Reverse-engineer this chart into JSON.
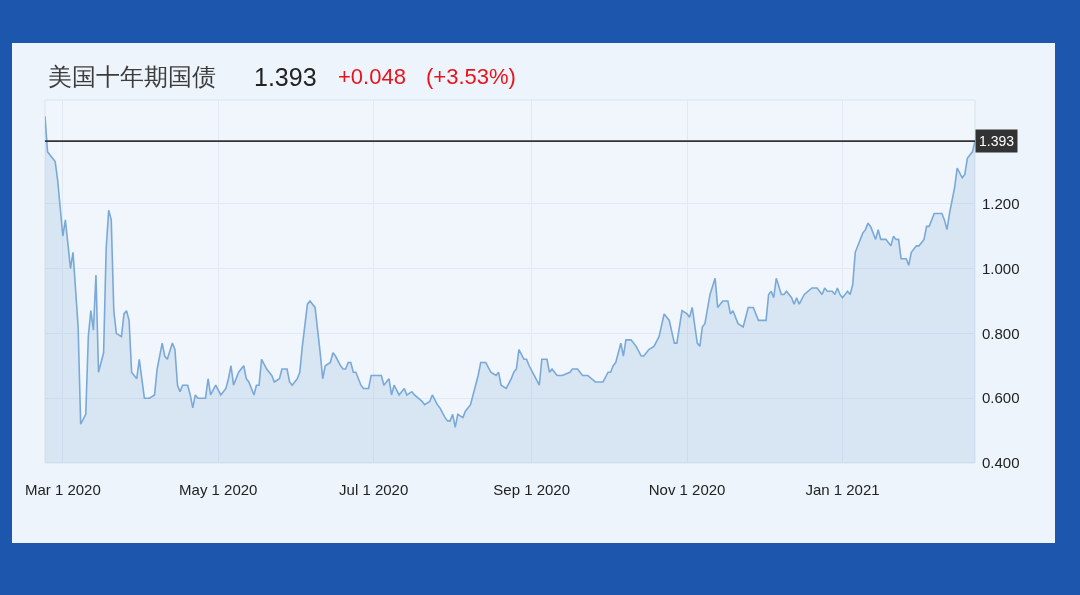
{
  "chart_data": {
    "type": "area",
    "title": "美国十年期国债",
    "subtitle": "1.393",
    "annotations": [
      "+0.048",
      "(+3.53%)"
    ],
    "x": [
      "2020-02-23",
      "2020-02-24",
      "2020-02-27",
      "2020-02-28",
      "2020-03-01",
      "2020-03-02",
      "2020-03-04",
      "2020-03-05",
      "2020-03-07",
      "2020-03-08",
      "2020-03-10",
      "2020-03-11",
      "2020-03-12",
      "2020-03-13",
      "2020-03-14",
      "2020-03-15",
      "2020-03-17",
      "2020-03-18",
      "2020-03-19",
      "2020-03-20",
      "2020-03-21",
      "2020-03-22",
      "2020-03-24",
      "2020-03-25",
      "2020-03-26",
      "2020-03-27",
      "2020-03-28",
      "2020-03-30",
      "2020-03-31",
      "2020-04-02",
      "2020-04-03",
      "2020-04-04",
      "2020-04-06",
      "2020-04-07",
      "2020-04-09",
      "2020-04-10",
      "2020-04-11",
      "2020-04-13",
      "2020-04-14",
      "2020-04-15",
      "2020-04-16",
      "2020-04-17",
      "2020-04-19",
      "2020-04-20",
      "2020-04-21",
      "2020-04-22",
      "2020-04-23",
      "2020-04-26",
      "2020-04-27",
      "2020-04-28",
      "2020-04-30",
      "2020-05-02",
      "2020-05-04",
      "2020-05-05",
      "2020-05-06",
      "2020-05-07",
      "2020-05-09",
      "2020-05-11",
      "2020-05-12",
      "2020-05-13",
      "2020-05-15",
      "2020-05-16",
      "2020-05-17",
      "2020-05-18",
      "2020-05-20",
      "2020-05-21",
      "2020-05-22",
      "2020-05-23",
      "2020-05-25",
      "2020-05-26",
      "2020-05-28",
      "2020-05-29",
      "2020-05-30",
      "2020-06-01",
      "2020-06-02",
      "2020-06-03",
      "2020-06-05",
      "2020-06-06",
      "2020-06-08",
      "2020-06-09",
      "2020-06-10",
      "2020-06-11",
      "2020-06-12",
      "2020-06-14",
      "2020-06-15",
      "2020-06-16",
      "2020-06-18",
      "2020-06-19",
      "2020-06-20",
      "2020-06-21",
      "2020-06-22",
      "2020-06-23",
      "2020-06-24",
      "2020-06-26",
      "2020-06-27",
      "2020-06-29",
      "2020-06-30",
      "2020-07-02",
      "2020-07-04",
      "2020-07-05",
      "2020-07-07",
      "2020-07-08",
      "2020-07-09",
      "2020-07-11",
      "2020-07-13",
      "2020-07-14",
      "2020-07-16",
      "2020-07-17",
      "2020-07-20",
      "2020-07-21",
      "2020-07-23",
      "2020-07-24",
      "2020-07-26",
      "2020-07-27",
      "2020-07-29",
      "2020-07-30",
      "2020-07-31",
      "2020-08-01",
      "2020-08-02",
      "2020-08-03",
      "2020-08-05",
      "2020-08-06",
      "2020-08-07",
      "2020-08-08",
      "2020-08-10",
      "2020-08-11",
      "2020-08-12",
      "2020-08-13",
      "2020-08-14",
      "2020-08-16",
      "2020-08-18",
      "2020-08-19",
      "2020-08-20",
      "2020-08-22",
      "2020-08-24",
      "2020-08-25",
      "2020-08-26",
      "2020-08-27",
      "2020-08-29",
      "2020-08-30",
      "2020-08-31",
      "2020-09-02",
      "2020-09-04",
      "2020-09-05",
      "2020-09-07",
      "2020-09-08",
      "2020-09-09",
      "2020-09-11",
      "2020-09-13",
      "2020-09-16",
      "2020-09-17",
      "2020-09-18",
      "2020-09-19",
      "2020-09-21",
      "2020-09-23",
      "2020-09-26",
      "2020-09-27",
      "2020-09-29",
      "2020-10-01",
      "2020-10-02",
      "2020-10-03",
      "2020-10-04",
      "2020-10-06",
      "2020-10-07",
      "2020-10-08",
      "2020-10-10",
      "2020-10-12",
      "2020-10-14",
      "2020-10-15",
      "2020-10-17",
      "2020-10-19",
      "2020-10-21",
      "2020-10-23",
      "2020-10-25",
      "2020-10-27",
      "2020-10-28",
      "2020-10-30",
      "2020-11-01",
      "2020-11-02",
      "2020-11-03",
      "2020-11-05",
      "2020-11-06",
      "2020-11-07",
      "2020-11-08",
      "2020-11-10",
      "2020-11-12",
      "2020-11-13",
      "2020-11-15",
      "2020-11-17",
      "2020-11-18",
      "2020-11-19",
      "2020-11-21",
      "2020-11-23",
      "2020-11-25",
      "2020-11-27",
      "2020-11-29",
      "2020-12-02",
      "2020-12-03",
      "2020-12-04",
      "2020-12-05",
      "2020-12-06",
      "2020-12-08",
      "2020-12-09",
      "2020-12-10",
      "2020-12-12",
      "2020-12-13",
      "2020-12-14",
      "2020-12-15",
      "2020-12-17",
      "2020-12-20",
      "2020-12-22",
      "2020-12-24",
      "2020-12-25",
      "2020-12-26",
      "2020-12-28",
      "2020-12-29",
      "2020-12-30",
      "2020-12-31",
      "2021-01-01",
      "2021-01-03",
      "2021-01-04",
      "2021-01-05",
      "2021-01-06",
      "2021-01-09",
      "2021-01-10",
      "2021-01-11",
      "2021-01-12",
      "2021-01-14",
      "2021-01-15",
      "2021-01-16",
      "2021-01-17",
      "2021-01-18",
      "2021-01-20",
      "2021-01-21",
      "2021-01-22",
      "2021-01-23",
      "2021-01-24",
      "2021-01-26",
      "2021-01-27",
      "2021-01-28",
      "2021-01-30",
      "2021-01-31",
      "2021-02-02",
      "2021-02-03",
      "2021-02-04",
      "2021-02-06",
      "2021-02-07",
      "2021-02-09",
      "2021-02-10",
      "2021-02-11",
      "2021-02-12",
      "2021-02-14",
      "2021-02-15",
      "2021-02-17",
      "2021-02-18",
      "2021-02-19",
      "2021-02-21",
      "2021-02-22"
    ],
    "series": [
      {
        "color": "#7aa9d8",
        "values": [
          1.47,
          1.36,
          1.33,
          1.27,
          1.1,
          1.15,
          1.0,
          1.05,
          0.82,
          0.52,
          0.55,
          0.79,
          0.87,
          0.81,
          0.98,
          0.68,
          0.74,
          1.06,
          1.18,
          1.15,
          0.87,
          0.8,
          0.79,
          0.86,
          0.87,
          0.84,
          0.68,
          0.66,
          0.72,
          0.6,
          0.6,
          0.6,
          0.61,
          0.69,
          0.77,
          0.73,
          0.72,
          0.77,
          0.75,
          0.64,
          0.62,
          0.64,
          0.64,
          0.61,
          0.57,
          0.61,
          0.6,
          0.6,
          0.66,
          0.61,
          0.64,
          0.61,
          0.63,
          0.66,
          0.7,
          0.64,
          0.68,
          0.7,
          0.66,
          0.65,
          0.61,
          0.64,
          0.64,
          0.72,
          0.69,
          0.68,
          0.67,
          0.65,
          0.66,
          0.69,
          0.69,
          0.65,
          0.64,
          0.66,
          0.68,
          0.76,
          0.89,
          0.9,
          0.88,
          0.81,
          0.74,
          0.66,
          0.7,
          0.71,
          0.74,
          0.73,
          0.7,
          0.69,
          0.69,
          0.71,
          0.71,
          0.68,
          0.68,
          0.64,
          0.63,
          0.63,
          0.67,
          0.67,
          0.67,
          0.64,
          0.66,
          0.61,
          0.64,
          0.61,
          0.63,
          0.61,
          0.62,
          0.61,
          0.59,
          0.58,
          0.59,
          0.61,
          0.58,
          0.57,
          0.54,
          0.53,
          0.53,
          0.55,
          0.51,
          0.55,
          0.54,
          0.56,
          0.57,
          0.58,
          0.64,
          0.67,
          0.71,
          0.71,
          0.71,
          0.68,
          0.67,
          0.68,
          0.64,
          0.63,
          0.66,
          0.68,
          0.69,
          0.75,
          0.72,
          0.72,
          0.7,
          0.67,
          0.64,
          0.72,
          0.72,
          0.68,
          0.69,
          0.67,
          0.67,
          0.68,
          0.69,
          0.69,
          0.69,
          0.67,
          0.67,
          0.65,
          0.65,
          0.65,
          0.68,
          0.68,
          0.7,
          0.71,
          0.77,
          0.73,
          0.78,
          0.78,
          0.76,
          0.73,
          0.73,
          0.75,
          0.76,
          0.79,
          0.86,
          0.84,
          0.77,
          0.77,
          0.87,
          0.86,
          0.85,
          0.88,
          0.77,
          0.76,
          0.82,
          0.83,
          0.92,
          0.97,
          0.88,
          0.9,
          0.9,
          0.86,
          0.87,
          0.83,
          0.82,
          0.88,
          0.88,
          0.84,
          0.84,
          0.92,
          0.93,
          0.91,
          0.97,
          0.92,
          0.92,
          0.93,
          0.91,
          0.89,
          0.91,
          0.89,
          0.92,
          0.94,
          0.94,
          0.92,
          0.94,
          0.93,
          0.93,
          0.92,
          0.94,
          0.92,
          0.91,
          0.93,
          0.92,
          0.95,
          1.05,
          1.11,
          1.12,
          1.14,
          1.13,
          1.09,
          1.12,
          1.09,
          1.09,
          1.09,
          1.07,
          1.1,
          1.09,
          1.09,
          1.03,
          1.03,
          1.01,
          1.05,
          1.07,
          1.07,
          1.09,
          1.13,
          1.13,
          1.17,
          1.17,
          1.17,
          1.15,
          1.12,
          1.17,
          1.25,
          1.31,
          1.28,
          1.29,
          1.34,
          1.36,
          1.393
        ]
      }
    ],
    "xlim": [
      "2020-02-23",
      "2021-02-22"
    ],
    "xticks": [
      {
        "value": "2020-03-01",
        "label": "Mar 1 2020"
      },
      {
        "value": "2020-05-01",
        "label": "May 1 2020"
      },
      {
        "value": "2020-07-01",
        "label": "Jul 1 2020"
      },
      {
        "value": "2020-09-01",
        "label": "Sep 1 2020"
      },
      {
        "value": "2020-11-01",
        "label": "Nov 1 2020"
      },
      {
        "value": "2021-01-01",
        "label": "Jan 1 2021"
      }
    ],
    "ylim": [
      0.4,
      1.52
    ],
    "yticks": [
      {
        "value": 0.4,
        "label": "0.400"
      },
      {
        "value": 0.6,
        "label": "0.600"
      },
      {
        "value": 0.8,
        "label": "0.800"
      },
      {
        "value": 1.0,
        "label": "1.000"
      },
      {
        "value": 1.2,
        "label": "1.200"
      }
    ],
    "ref_lines": [
      {
        "axis": "y",
        "value": 1.393,
        "label": "1.393",
        "color": "#333333"
      }
    ],
    "grid": true
  }
}
